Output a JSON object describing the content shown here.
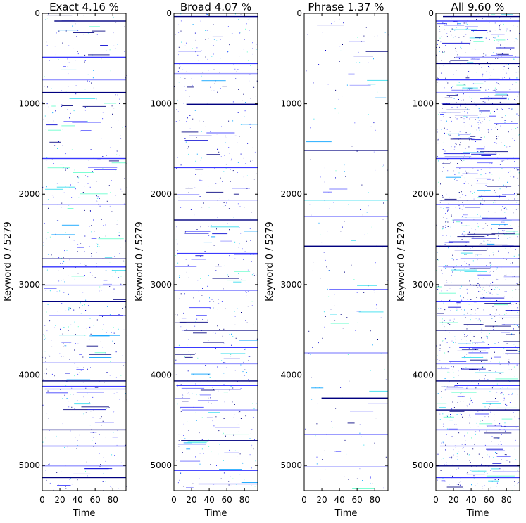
{
  "chart_data": [
    {
      "type": "heatmap",
      "title": "Exact 4.16 %",
      "xlabel": "Time",
      "ylabel": "Keyword 0 / 5279",
      "xlim": [
        0,
        95
      ],
      "ylim": [
        5279,
        0
      ],
      "xticks": [
        0,
        20,
        40,
        60,
        80
      ],
      "yticks": [
        0,
        1000,
        2000,
        3000,
        4000,
        5000
      ],
      "fill_fraction": 0.0416,
      "highlight_rows": [
        80,
        480,
        730,
        870,
        1600,
        2110,
        2710,
        2800,
        3000,
        3180,
        3340,
        3860,
        4060,
        4120,
        4150,
        4600,
        4780,
        5000,
        5130
      ],
      "seed": 11
    },
    {
      "type": "heatmap",
      "title": "Broad 4.07 %",
      "xlabel": "Time",
      "ylabel": "Keyword 0 / 5279",
      "xlim": [
        0,
        95
      ],
      "ylim": [
        5279,
        0
      ],
      "xticks": [
        0,
        20,
        40,
        60,
        80
      ],
      "yticks": [
        0,
        1000,
        2000,
        3000,
        4000,
        5000
      ],
      "fill_fraction": 0.0407,
      "highlight_rows": [
        30,
        550,
        660,
        1000,
        1700,
        2060,
        2280,
        2650,
        3060,
        3500,
        3690,
        3870,
        4060,
        4110,
        4380,
        4720,
        5050,
        5200
      ],
      "seed": 23
    },
    {
      "type": "heatmap",
      "title": "Phrase 1.37 %",
      "xlabel": "Time",
      "ylabel": "Keyword 0 / 5279",
      "xlim": [
        0,
        95
      ],
      "ylim": [
        5279,
        0
      ],
      "xticks": [
        0,
        20,
        40,
        60,
        80
      ],
      "yticks": [
        0,
        1000,
        2000,
        3000,
        4000,
        5000
      ],
      "fill_fraction": 0.0137,
      "highlight_rows": [
        1510,
        2060,
        2240,
        2570,
        3050,
        3750,
        4250,
        4650,
        5010
      ],
      "seed": 37
    },
    {
      "type": "heatmap",
      "title": "All 9.60 %",
      "xlabel": "Time",
      "ylabel": "Keyword 0 / 5279",
      "xlim": [
        0,
        95
      ],
      "ylim": [
        5279,
        0
      ],
      "xticks": [
        0,
        20,
        40,
        60,
        80
      ],
      "yticks": [
        0,
        1000,
        2000,
        3000,
        4000,
        5000
      ],
      "fill_fraction": 0.096,
      "highlight_rows": [
        30,
        80,
        480,
        550,
        730,
        870,
        1000,
        1600,
        1700,
        2060,
        2110,
        2280,
        2570,
        2710,
        2800,
        3000,
        3180,
        3340,
        3500,
        3690,
        3870,
        4060,
        4110,
        4150,
        4380,
        4600,
        4780,
        5000,
        5130
      ],
      "seed": 53
    }
  ],
  "palette": [
    "#00007f",
    "#0000d0",
    "#3a3aff",
    "#6b6bff",
    "#9a9aff",
    "#00a0ff",
    "#33ddee",
    "#66ffcc"
  ]
}
